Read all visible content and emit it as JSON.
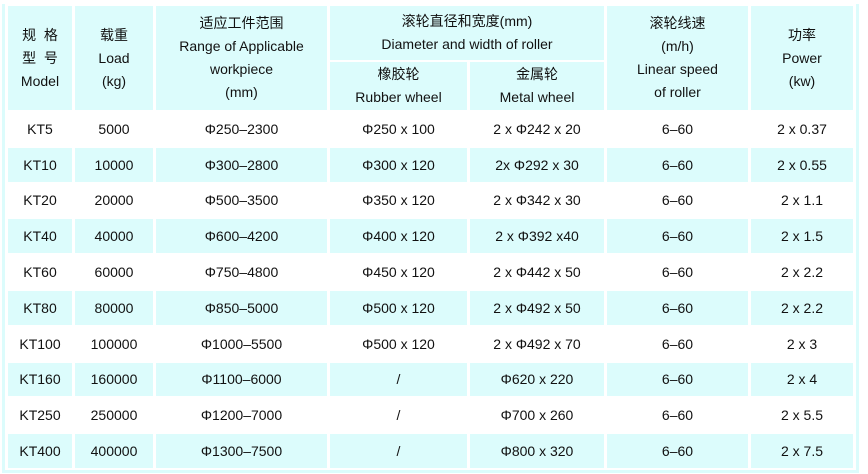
{
  "header": {
    "model": {
      "zh1": "规  格",
      "zh2": "型  号",
      "en": "Model"
    },
    "load": {
      "zh": "载重",
      "en": "Load",
      "unit": "(kg)"
    },
    "range": {
      "zh": "适应工件范围",
      "en1": "Range of Applicable",
      "en2": "workpiece",
      "unit": "(mm)"
    },
    "roller": {
      "zh": "滚轮直径和宽度(mm)",
      "en": "Diameter and width of roller"
    },
    "rubber": {
      "zh": "橡胶轮",
      "en": "Rubber wheel"
    },
    "metal": {
      "zh": "金属轮",
      "en": "Metal wheel"
    },
    "speed": {
      "zh": "滚轮线速",
      "unit": "(m/h)",
      "en1": "Linear speed",
      "en2": "of roller"
    },
    "power": {
      "zh": "功率",
      "en": "Power",
      "unit": "(kw)"
    }
  },
  "rows": [
    [
      "KT5",
      "5000",
      "Φ250–2300",
      "Φ250 x 100",
      "2 x Φ242 x 20",
      "6–60",
      "2 x 0.37"
    ],
    [
      "KT10",
      "10000",
      "Φ300–2800",
      "Φ300 x 120",
      "2x Φ292 x 30",
      "6–60",
      "2 x 0.55"
    ],
    [
      "KT20",
      "20000",
      "Φ500–3500",
      "Φ350 x 120",
      "2 x Φ342 x 30",
      "6–60",
      "2 x 1.1"
    ],
    [
      "KT40",
      "40000",
      "Φ600–4200",
      "Φ400 x 120",
      "2 x Φ392 x40",
      "6–60",
      "2 x 1.5"
    ],
    [
      "KT60",
      "60000",
      "Φ750–4800",
      "Φ450 x 120",
      "2 x Φ442 x 50",
      "6–60",
      "2 x 2.2"
    ],
    [
      "KT80",
      "80000",
      "Φ850–5000",
      "Φ500 x 120",
      "2 x Φ492 x 50",
      "6–60",
      "2 x 2.2"
    ],
    [
      "KT100",
      "100000",
      "Φ1000–5500",
      "Φ500 x 120",
      "2 x Φ492 x 70",
      "6–60",
      "2 x 3"
    ],
    [
      "KT160",
      "160000",
      "Φ1100–6000",
      "/",
      "Φ620 x 220",
      "6–60",
      "2 x 4"
    ],
    [
      "KT250",
      "250000",
      "Φ1200–7000",
      "/",
      "Φ700 x 260",
      "6–60",
      "2 x 5.5"
    ],
    [
      "KT400",
      "400000",
      "Φ1300–7500",
      "/",
      "Φ800 x 320",
      "6–60",
      "2 x 7.5"
    ]
  ],
  "colors": {
    "header_bg": "#dcfcfc",
    "alt_row_bg": "#dcfcfc"
  }
}
